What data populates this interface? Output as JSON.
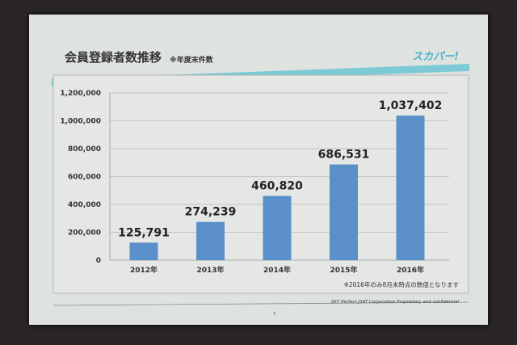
{
  "slide": {
    "title": "会員登録者数推移",
    "subtitle": "※年度末件数",
    "logo": "スカパー!",
    "note": "※2016年のみ8月末時点の数値となります",
    "page_number": "3",
    "footer": "SKY Perfect JSAT Corporation Proprietary and confidential"
  },
  "colors": {
    "bar": "#5b8fc9",
    "accent_band": "#7ccad6",
    "logo": "#4ab3cf"
  },
  "chart_data": {
    "type": "bar",
    "categories": [
      "2012年",
      "2013年",
      "2014年",
      "2015年",
      "2016年"
    ],
    "values": [
      125791,
      274239,
      460820,
      686531,
      1037402
    ],
    "data_labels": [
      "125,791",
      "274,239",
      "460,820",
      "686,531",
      "1,037,402"
    ],
    "yticks": [
      "0",
      "200,000",
      "400,000",
      "600,000",
      "800,000",
      "1,000,000",
      "1,200,000"
    ],
    "ylim": [
      0,
      1200000
    ],
    "grid": true,
    "title": "",
    "xlabel": "",
    "ylabel": ""
  }
}
